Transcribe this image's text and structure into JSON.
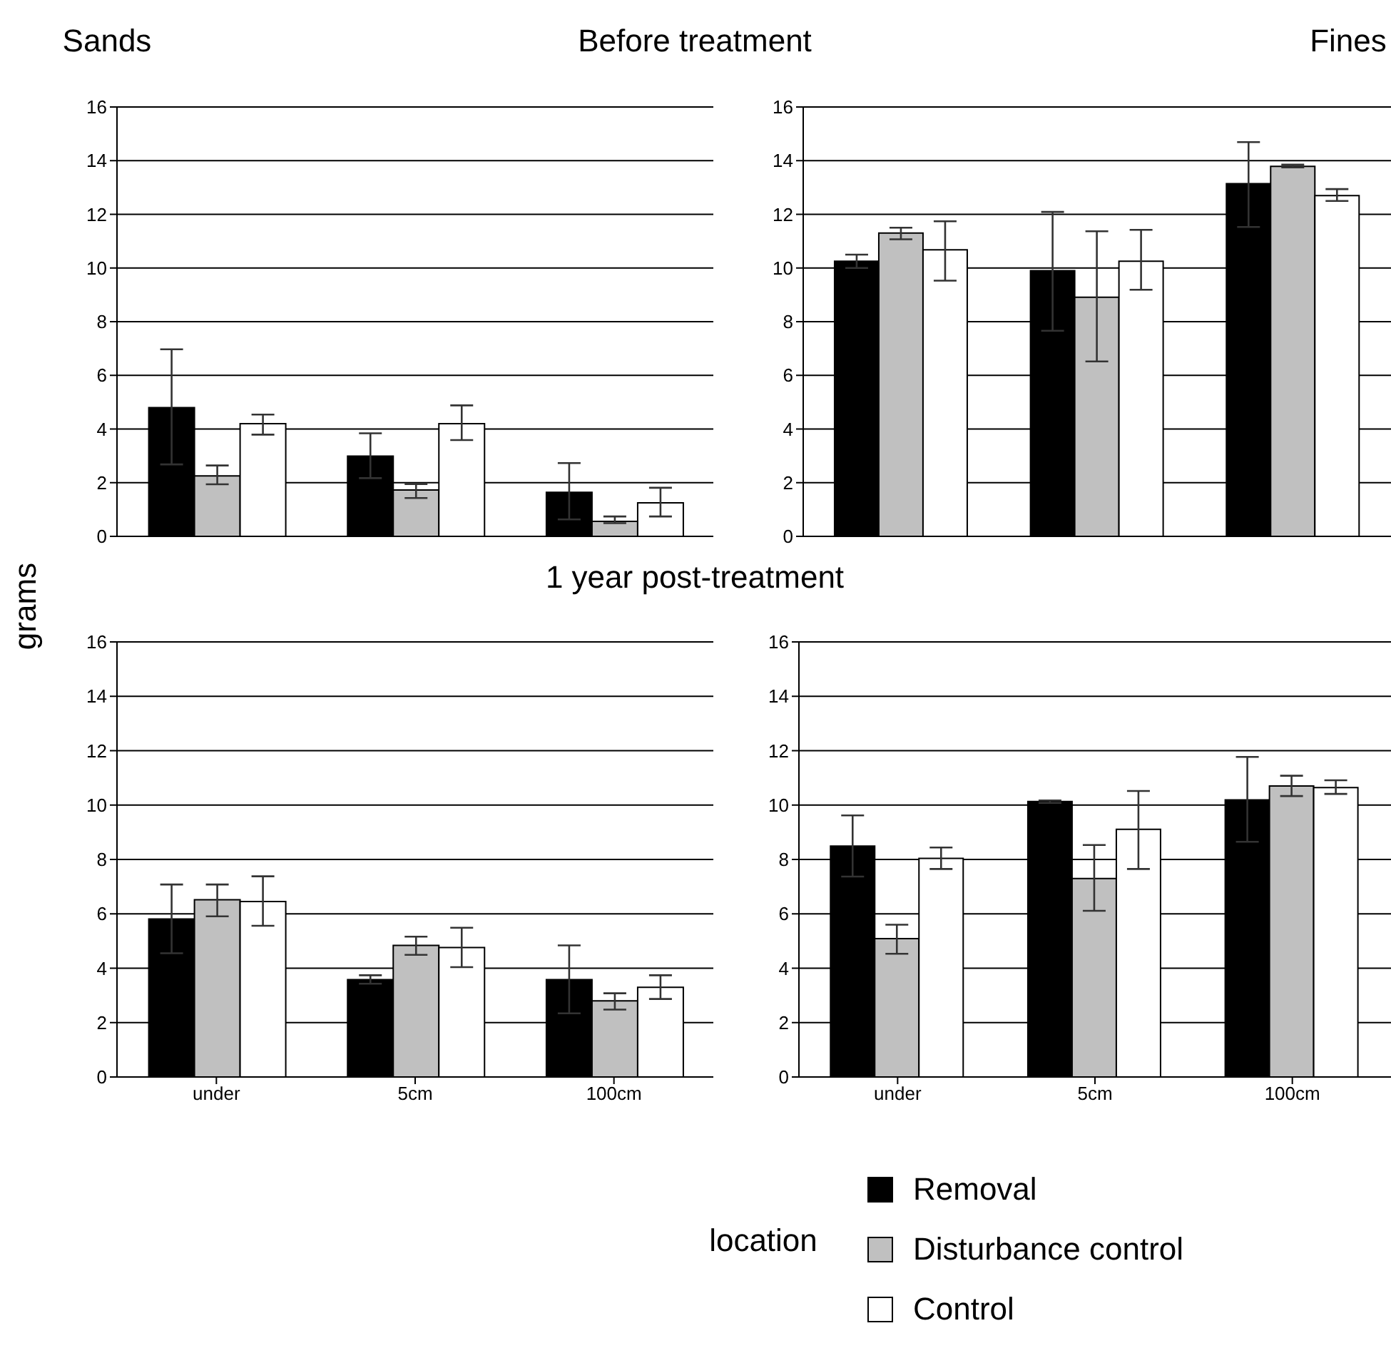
{
  "chart_data": [
    {
      "type": "bar",
      "title": "Sands",
      "subtitle": "Before treatment",
      "ylabel": "grams",
      "categories": [
        null,
        null,
        null
      ],
      "ylim": [
        0,
        16
      ],
      "yticks": [
        0,
        2,
        4,
        6,
        8,
        10,
        12,
        14,
        16
      ],
      "grid": "y",
      "tick_labels": "y",
      "series": [
        {
          "color": "#000000",
          "values": [
            4.8,
            2.99,
            1.64
          ],
          "errors": [
            [
              2.68,
              6.97
            ],
            [
              2.17,
              3.84
            ],
            [
              0.63,
              2.73
            ]
          ]
        },
        {
          "color": "#c0c0c0",
          "values": [
            2.25,
            1.73,
            0.56
          ],
          "errors": [
            [
              1.94,
              2.64
            ],
            [
              1.43,
              1.95
            ],
            [
              0.49,
              0.74
            ]
          ]
        },
        {
          "color": "#ffffff",
          "values": [
            4.2,
            4.2,
            1.25
          ],
          "errors": [
            [
              3.79,
              4.54
            ],
            [
              3.59,
              4.88
            ],
            [
              0.74,
              1.81
            ]
          ]
        }
      ]
    },
    {
      "type": "bar",
      "title": "Fines",
      "categories": [
        null,
        null,
        null
      ],
      "ylim": [
        0,
        16
      ],
      "yticks": [
        0,
        2,
        4,
        6,
        8,
        10,
        12,
        14,
        16
      ],
      "grid": "y",
      "tick_labels": "y",
      "series": [
        {
          "color": "#000000",
          "values": [
            10.25,
            9.9,
            13.14
          ],
          "errors": [
            [
              10.0,
              10.5
            ],
            [
              7.66,
              12.09
            ],
            [
              11.53,
              14.69
            ]
          ]
        },
        {
          "color": "#c0c0c0",
          "values": [
            11.3,
            8.91,
            13.79
          ],
          "errors": [
            [
              11.07,
              11.5
            ],
            [
              6.52,
              11.37
            ],
            [
              13.75,
              13.85
            ]
          ]
        },
        {
          "color": "#ffffff",
          "values": [
            10.68,
            10.25,
            12.7
          ],
          "errors": [
            [
              9.53,
              11.74
            ],
            [
              9.19,
              11.42
            ],
            [
              12.5,
              12.94
            ]
          ]
        }
      ]
    },
    {
      "type": "bar",
      "subtitle": "1 year post-treatment",
      "xlabel": "location",
      "categories": [
        "under",
        "5cm",
        "100cm"
      ],
      "ylim": [
        0,
        16
      ],
      "yticks": [
        0,
        2,
        4,
        6,
        8,
        10,
        12,
        14,
        16
      ],
      "grid": "y",
      "series": [
        {
          "color": "#000000",
          "values": [
            5.81,
            3.58,
            3.58
          ],
          "errors": [
            [
              4.55,
              7.08
            ],
            [
              3.43,
              3.74
            ],
            [
              2.34,
              4.84
            ]
          ]
        },
        {
          "color": "#c0c0c0",
          "values": [
            6.52,
            4.84,
            2.8
          ],
          "errors": [
            [
              5.91,
              7.08
            ],
            [
              4.49,
              5.16
            ],
            [
              2.48,
              3.08
            ]
          ]
        },
        {
          "color": "#ffffff",
          "values": [
            6.45,
            4.76,
            3.3
          ],
          "errors": [
            [
              5.56,
              7.38
            ],
            [
              4.04,
              5.49
            ],
            [
              2.87,
              3.74
            ]
          ]
        }
      ]
    },
    {
      "type": "bar",
      "categories": [
        "under",
        "5cm",
        "100cm"
      ],
      "ylim": [
        0,
        16
      ],
      "yticks": [
        0,
        2,
        4,
        6,
        8,
        10,
        12,
        14,
        16
      ],
      "grid": "y",
      "legend": "bottom",
      "series": [
        {
          "name": "Removal",
          "color": "#000000",
          "values": [
            8.49,
            10.13,
            10.19
          ],
          "errors": [
            [
              7.37,
              9.62
            ],
            [
              10.08,
              10.17
            ],
            [
              8.65,
              11.77
            ]
          ]
        },
        {
          "name": "Disturbance control",
          "color": "#c0c0c0",
          "values": [
            5.09,
            7.3,
            10.7
          ],
          "errors": [
            [
              4.53,
              5.6
            ],
            [
              6.11,
              8.53
            ],
            [
              10.33,
              11.08
            ]
          ]
        },
        {
          "name": "Control",
          "color": "#ffffff",
          "values": [
            8.04,
            9.11,
            10.64
          ],
          "errors": [
            [
              7.65,
              8.44
            ],
            [
              7.65,
              10.52
            ],
            [
              10.41,
              10.91
            ]
          ]
        }
      ]
    }
  ]
}
